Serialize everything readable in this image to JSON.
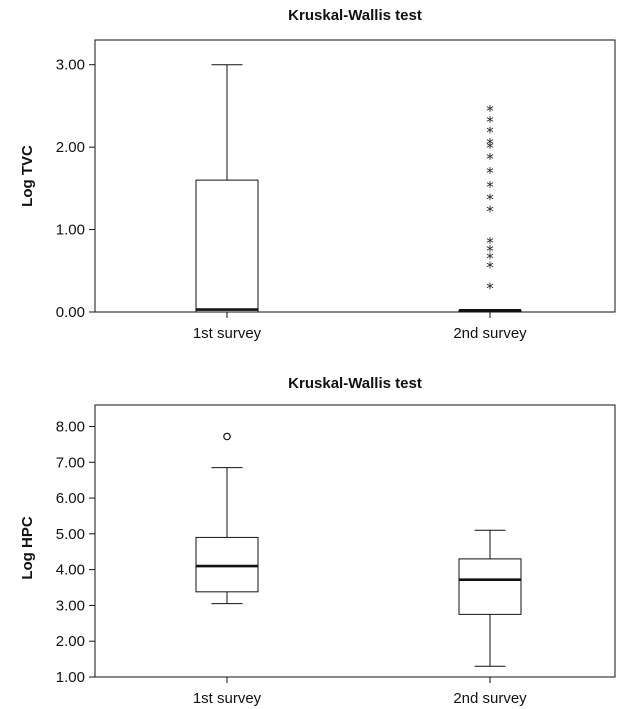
{
  "chart_data": [
    {
      "type": "box",
      "title": "Kruskal-Wallis test",
      "ylabel": "Log TVC",
      "xlabel": "",
      "ylim": [
        0,
        3.3
      ],
      "yticks": [
        0,
        1,
        2,
        3
      ],
      "ytick_labels": [
        "0.00",
        "1.00",
        "2.00",
        "3.00"
      ],
      "categories": [
        "1st survey",
        "2nd survey"
      ],
      "boxes": [
        {
          "whisker_low": 0.0,
          "q1": 0.0,
          "median": 0.03,
          "q3": 1.6,
          "whisker_high": 3.0,
          "outliers": [],
          "extremes": []
        },
        {
          "whisker_low": 0.0,
          "q1": 0.0,
          "median": 0.02,
          "q3": 0.02,
          "whisker_high": 0.02,
          "outliers": [],
          "extremes": [
            2.45,
            2.32,
            2.19,
            2.05,
            2.0,
            1.87,
            1.7,
            1.53,
            1.38,
            1.23,
            0.85,
            0.75,
            0.66,
            0.55,
            0.3
          ]
        }
      ],
      "extreme_marker": "*",
      "grid": false
    },
    {
      "type": "box",
      "title": "Kruskal-Wallis test",
      "ylabel": "Log HPC",
      "xlabel": "",
      "ylim": [
        1,
        8.6
      ],
      "yticks": [
        1,
        2,
        3,
        4,
        5,
        6,
        7,
        8
      ],
      "ytick_labels": [
        "1.00",
        "2.00",
        "3.00",
        "4.00",
        "5.00",
        "6.00",
        "7.00",
        "8.00"
      ],
      "categories": [
        "1st survey",
        "2nd survey"
      ],
      "boxes": [
        {
          "whisker_low": 3.05,
          "q1": 3.38,
          "median": 4.1,
          "q3": 4.9,
          "whisker_high": 6.85,
          "outliers": [
            7.72
          ],
          "extremes": []
        },
        {
          "whisker_low": 1.3,
          "q1": 2.75,
          "median": 3.72,
          "q3": 4.3,
          "whisker_high": 5.1,
          "outliers": [],
          "extremes": []
        }
      ],
      "outlier_marker": "o",
      "grid": false
    }
  ]
}
